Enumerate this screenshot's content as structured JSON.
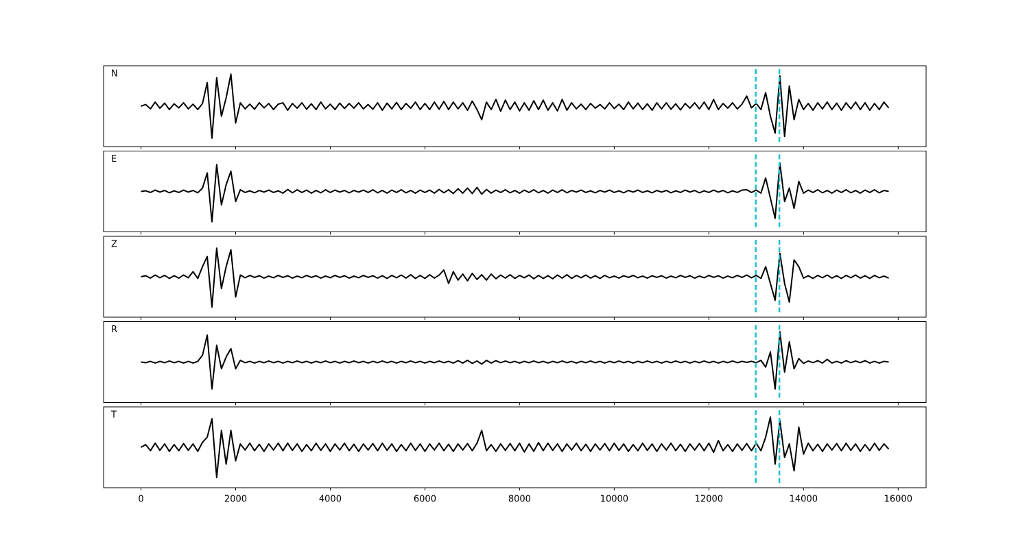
{
  "chart_data": {
    "type": "line",
    "x": [
      0,
      100,
      200,
      300,
      400,
      500,
      600,
      700,
      800,
      900,
      1000,
      1100,
      1200,
      1300,
      1400,
      1500,
      1600,
      1700,
      1800,
      1900,
      2000,
      2100,
      2200,
      2300,
      2400,
      2500,
      2600,
      2700,
      2800,
      2900,
      3000,
      3100,
      3200,
      3300,
      3400,
      3500,
      3600,
      3700,
      3800,
      3900,
      4000,
      4100,
      4200,
      4300,
      4400,
      4500,
      4600,
      4700,
      4800,
      4900,
      5000,
      5100,
      5200,
      5300,
      5400,
      5500,
      5600,
      5700,
      5800,
      5900,
      6000,
      6100,
      6200,
      6300,
      6400,
      6500,
      6600,
      6700,
      6800,
      6900,
      7000,
      7100,
      7200,
      7300,
      7400,
      7500,
      7600,
      7700,
      7800,
      7900,
      8000,
      8100,
      8200,
      8300,
      8400,
      8500,
      8600,
      8700,
      8800,
      8900,
      9000,
      9100,
      9200,
      9300,
      9400,
      9500,
      9600,
      9700,
      9800,
      9900,
      10000,
      10100,
      10200,
      10300,
      10400,
      10500,
      10600,
      10700,
      10800,
      10900,
      11000,
      11100,
      11200,
      11300,
      11400,
      11500,
      11600,
      11700,
      11800,
      11900,
      12000,
      12100,
      12200,
      12300,
      12400,
      12500,
      12600,
      12700,
      12800,
      12900,
      13000,
      13100,
      13200,
      13300,
      13400,
      13500,
      13600,
      13700,
      13800,
      13900,
      14000,
      14100,
      14200,
      14300,
      14400,
      14500,
      14600,
      14700,
      14800,
      14900,
      15000,
      15100,
      15200,
      15300,
      15400,
      15500,
      15600,
      15700,
      15800
    ],
    "series": [
      {
        "name": "N",
        "color": "#000000",
        "values": [
          0,
          0.05,
          -0.08,
          0.12,
          -0.06,
          0.09,
          -0.1,
          0.07,
          -0.05,
          0.1,
          -0.08,
          0.06,
          -0.1,
          0.08,
          0.7,
          -0.95,
          0.85,
          -0.3,
          0.25,
          0.95,
          -0.5,
          0.1,
          -0.08,
          0.06,
          -0.09,
          0.1,
          -0.05,
          0.08,
          -0.1,
          0.06,
          0.1,
          -0.12,
          0.08,
          -0.06,
          0.1,
          -0.09,
          0.07,
          -0.1,
          0.12,
          -0.08,
          0.06,
          -0.1,
          0.09,
          -0.07,
          0.08,
          -0.06,
          0.1,
          -0.08,
          0.05,
          -0.09,
          0.1,
          -0.12,
          0.09,
          -0.08,
          0.11,
          -0.1,
          0.08,
          -0.06,
          0.12,
          -0.1,
          0.08,
          -0.1,
          0.12,
          -0.09,
          0.14,
          -0.1,
          0.12,
          -0.08,
          0.1,
          -0.12,
          0.15,
          -0.1,
          -0.4,
          0.12,
          -0.1,
          0.2,
          -0.15,
          0.18,
          -0.1,
          0.12,
          -0.14,
          0.1,
          -0.12,
          0.16,
          -0.1,
          0.18,
          -0.12,
          0.1,
          -0.14,
          0.2,
          -0.12,
          0.1,
          -0.08,
          0.06,
          -0.1,
          0.08,
          -0.06,
          0.05,
          -0.08,
          0.1,
          -0.07,
          0.06,
          -0.1,
          0.12,
          -0.08,
          0.09,
          -0.1,
          0.07,
          -0.12,
          0.1,
          -0.08,
          0.1,
          -0.09,
          0.07,
          -0.11,
          0.08,
          -0.06,
          0.1,
          -0.08,
          0.12,
          -0.1,
          0.2,
          -0.1,
          0.08,
          -0.06,
          0.1,
          -0.08,
          0.06,
          0.3,
          -0.05,
          0.08,
          -0.1,
          0.4,
          -0.3,
          -0.8,
          0.9,
          -0.9,
          0.6,
          -0.4,
          0.2,
          -0.1,
          0.08,
          -0.12,
          0.1,
          -0.08,
          0.12,
          -0.1,
          0.09,
          -0.12,
          0.1,
          -0.08,
          0.12,
          -0.1,
          0.1,
          -0.12,
          0.08,
          -0.1,
          0.12,
          -0.05
        ]
      },
      {
        "name": "E",
        "color": "#000000",
        "values": [
          0,
          0.02,
          -0.03,
          0.04,
          -0.02,
          0.03,
          -0.04,
          0.02,
          -0.03,
          0.04,
          -0.02,
          0.03,
          -0.04,
          0.1,
          0.55,
          -0.9,
          0.8,
          -0.4,
          0.2,
          0.6,
          -0.3,
          0.05,
          -0.03,
          0.02,
          -0.04,
          0.03,
          -0.02,
          0.04,
          -0.03,
          0.02,
          -0.05,
          0.06,
          -0.04,
          0.05,
          -0.03,
          0.04,
          -0.05,
          0.03,
          -0.04,
          0.05,
          -0.03,
          0.04,
          -0.02,
          0.03,
          -0.04,
          0.03,
          -0.02,
          0.04,
          -0.03,
          0.05,
          -0.04,
          0.03,
          -0.05,
          0.04,
          -0.03,
          0.05,
          -0.04,
          0.03,
          -0.05,
          0.04,
          -0.03,
          0.04,
          -0.05,
          0.06,
          -0.04,
          0.05,
          -0.06,
          0.08,
          -0.05,
          0.1,
          -0.06,
          0.12,
          -0.08,
          0.06,
          -0.05,
          0.04,
          -0.03,
          0.05,
          -0.04,
          0.03,
          -0.05,
          0.04,
          -0.03,
          0.05,
          -0.04,
          0.03,
          -0.05,
          0.04,
          -0.03,
          0.05,
          -0.04,
          0.03,
          -0.02,
          0.04,
          -0.03,
          0.02,
          -0.04,
          0.03,
          -0.02,
          0.04,
          -0.03,
          0.02,
          -0.04,
          0.03,
          -0.02,
          0.04,
          -0.03,
          0.02,
          -0.04,
          0.03,
          -0.02,
          0.03,
          -0.04,
          0.02,
          -0.03,
          0.04,
          -0.02,
          0.03,
          -0.04,
          0.02,
          -0.03,
          0.04,
          -0.02,
          0.03,
          -0.04,
          0.02,
          -0.03,
          0.04,
          0.05,
          -0.03,
          0.04,
          -0.05,
          0.4,
          -0.2,
          -0.8,
          0.85,
          -0.3,
          0.1,
          -0.5,
          0.3,
          -0.05,
          0.04,
          -0.03,
          0.05,
          -0.04,
          0.03,
          -0.05,
          0.04,
          -0.03,
          0.05,
          -0.04,
          0.03,
          -0.05,
          0.04,
          -0.03,
          0.05,
          -0.04,
          0.03,
          0
        ]
      },
      {
        "name": "Z",
        "color": "#000000",
        "values": [
          0,
          0.03,
          -0.04,
          0.05,
          -0.03,
          0.04,
          -0.05,
          0.03,
          -0.04,
          0.05,
          -0.03,
          0.15,
          -0.05,
          0.3,
          0.6,
          -0.9,
          0.85,
          -0.35,
          0.3,
          0.8,
          -0.6,
          0.05,
          -0.03,
          0.04,
          -0.02,
          0.03,
          -0.04,
          0.02,
          -0.03,
          0.04,
          -0.02,
          0.03,
          -0.04,
          0.02,
          -0.03,
          0.04,
          -0.02,
          0.03,
          -0.04,
          0.02,
          -0.03,
          0.04,
          -0.02,
          0.03,
          -0.04,
          0.02,
          -0.03,
          0.04,
          -0.02,
          0.03,
          -0.04,
          0.03,
          -0.05,
          0.04,
          -0.03,
          0.05,
          -0.04,
          0.06,
          -0.05,
          0.04,
          -0.05,
          0.06,
          -0.04,
          0.05,
          0.2,
          -0.2,
          0.15,
          -0.1,
          0.08,
          -0.12,
          0.1,
          -0.08,
          0.06,
          -0.1,
          0.08,
          -0.06,
          0.05,
          -0.04,
          0.06,
          -0.05,
          0.04,
          -0.03,
          0.05,
          -0.06,
          0.04,
          -0.05,
          0.03,
          -0.06,
          0.05,
          -0.04,
          0.06,
          -0.05,
          0.04,
          -0.03,
          0.05,
          -0.04,
          0.03,
          -0.05,
          0.04,
          -0.03,
          0.02,
          -0.04,
          0.03,
          -0.02,
          0.04,
          -0.03,
          0.02,
          -0.04,
          0.03,
          -0.02,
          0.03,
          -0.04,
          0.02,
          -0.03,
          0.04,
          -0.02,
          0.03,
          -0.04,
          0.02,
          -0.03,
          0.04,
          -0.02,
          0.03,
          -0.04,
          0.02,
          -0.03,
          0.04,
          -0.02,
          0.05,
          -0.03,
          0.04,
          -0.05,
          0.3,
          -0.2,
          -0.7,
          0.7,
          -0.2,
          -0.75,
          0.5,
          0.3,
          -0.04,
          0.03,
          -0.05,
          0.04,
          -0.03,
          0.05,
          -0.04,
          0.03,
          -0.05,
          0.04,
          -0.03,
          0.05,
          -0.04,
          0.03,
          -0.05,
          0.04,
          -0.03,
          0.02,
          -0.04
        ]
      },
      {
        "name": "R",
        "color": "#000000",
        "values": [
          0,
          -0.02,
          0.02,
          -0.03,
          0.02,
          -0.02,
          0.03,
          -0.02,
          0.02,
          -0.03,
          0.02,
          -0.03,
          0.02,
          0.2,
          0.8,
          -0.8,
          0.5,
          -0.2,
          0.15,
          0.4,
          -0.2,
          0.05,
          -0.02,
          0.02,
          -0.03,
          0.02,
          -0.02,
          0.03,
          -0.02,
          0.02,
          -0.03,
          0.02,
          -0.02,
          0.03,
          -0.02,
          0.02,
          -0.03,
          0.02,
          -0.02,
          0.03,
          -0.02,
          0.02,
          -0.03,
          0.02,
          -0.02,
          0.03,
          -0.02,
          0.02,
          -0.03,
          0.02,
          -0.02,
          0.03,
          -0.02,
          0.02,
          -0.03,
          0.02,
          -0.02,
          0.03,
          -0.02,
          0.02,
          -0.03,
          0.02,
          -0.02,
          0.03,
          -0.02,
          0.02,
          -0.03,
          0.04,
          -0.03,
          0.05,
          -0.04,
          0.03,
          -0.06,
          0.05,
          -0.03,
          0.04,
          -0.02,
          0.03,
          -0.02,
          0.02,
          -0.03,
          0.02,
          -0.02,
          0.03,
          -0.02,
          0.02,
          -0.03,
          0.02,
          -0.02,
          0.03,
          -0.02,
          0.02,
          -0.03,
          0.02,
          -0.02,
          0.03,
          -0.02,
          0.02,
          -0.03,
          0.02,
          -0.02,
          0.03,
          -0.02,
          0.02,
          -0.03,
          0.02,
          -0.02,
          0.03,
          -0.02,
          0.02,
          -0.03,
          0.02,
          -0.02,
          0.03,
          -0.02,
          0.02,
          -0.03,
          0.02,
          -0.02,
          0.03,
          -0.02,
          0.02,
          -0.03,
          0.02,
          -0.02,
          0.03,
          -0.02,
          0.02,
          -0.01,
          0.02,
          -0.02,
          0.05,
          -0.15,
          0.3,
          -0.8,
          0.9,
          -0.3,
          0.6,
          -0.2,
          0.1,
          -0.04,
          0.03,
          -0.02,
          0.04,
          -0.03,
          0.08,
          -0.03,
          0.02,
          -0.03,
          0.04,
          -0.02,
          0.03,
          -0.02,
          0.04,
          -0.03,
          0.02,
          -0.03,
          0.02,
          0
        ]
      },
      {
        "name": "T",
        "color": "#000000",
        "values": [
          0,
          0.08,
          -0.1,
          0.12,
          -0.09,
          0.1,
          -0.12,
          0.08,
          -0.1,
          0.11,
          -0.09,
          0.1,
          -0.12,
          0.15,
          0.3,
          0.85,
          -0.9,
          0.5,
          -0.5,
          0.5,
          -0.4,
          0.1,
          -0.08,
          0.12,
          -0.1,
          0.09,
          -0.12,
          0.1,
          -0.08,
          0.12,
          -0.1,
          0.12,
          -0.09,
          0.1,
          -0.12,
          0.08,
          -0.1,
          0.12,
          -0.09,
          0.1,
          -0.12,
          0.1,
          -0.08,
          0.12,
          -0.1,
          0.09,
          -0.12,
          0.1,
          -0.08,
          0.11,
          -0.1,
          0.12,
          -0.09,
          0.1,
          -0.12,
          0.08,
          -0.1,
          0.12,
          -0.09,
          0.1,
          -0.12,
          0.1,
          -0.08,
          0.12,
          -0.1,
          0.09,
          -0.12,
          0.1,
          -0.08,
          0.11,
          -0.1,
          0.12,
          0.5,
          -0.1,
          0.08,
          -0.12,
          0.1,
          -0.09,
          0.11,
          -0.1,
          0.12,
          -0.14,
          0.1,
          -0.12,
          0.14,
          -0.1,
          0.12,
          -0.09,
          0.1,
          -0.12,
          0.1,
          -0.08,
          0.12,
          -0.1,
          0.09,
          -0.12,
          0.1,
          -0.08,
          0.11,
          -0.1,
          0.12,
          -0.09,
          0.1,
          -0.12,
          0.08,
          -0.1,
          0.12,
          -0.09,
          0.1,
          -0.12,
          0.1,
          -0.08,
          0.12,
          -0.1,
          0.09,
          -0.12,
          0.1,
          -0.08,
          0.11,
          -0.1,
          0.12,
          -0.15,
          0.2,
          -0.1,
          0.08,
          -0.12,
          0.1,
          -0.09,
          0.11,
          -0.1,
          0.12,
          -0.1,
          0.3,
          0.9,
          -0.5,
          0.8,
          -0.3,
          0.1,
          -0.7,
          0.6,
          -0.2,
          0.12,
          -0.1,
          0.09,
          -0.12,
          0.1,
          -0.08,
          0.11,
          -0.1,
          0.12,
          -0.09,
          0.1,
          -0.12,
          0.08,
          -0.1,
          0.12,
          -0.09,
          0.1,
          -0.05
        ]
      }
    ],
    "vlines": [
      12990,
      13490
    ],
    "vline_color": "#17becf",
    "xlim": [
      -790,
      16590
    ],
    "xticks": [
      0,
      2000,
      4000,
      6000,
      8000,
      10000,
      12000,
      14000,
      16000
    ],
    "ylim": [
      -1.2,
      1.2
    ]
  }
}
